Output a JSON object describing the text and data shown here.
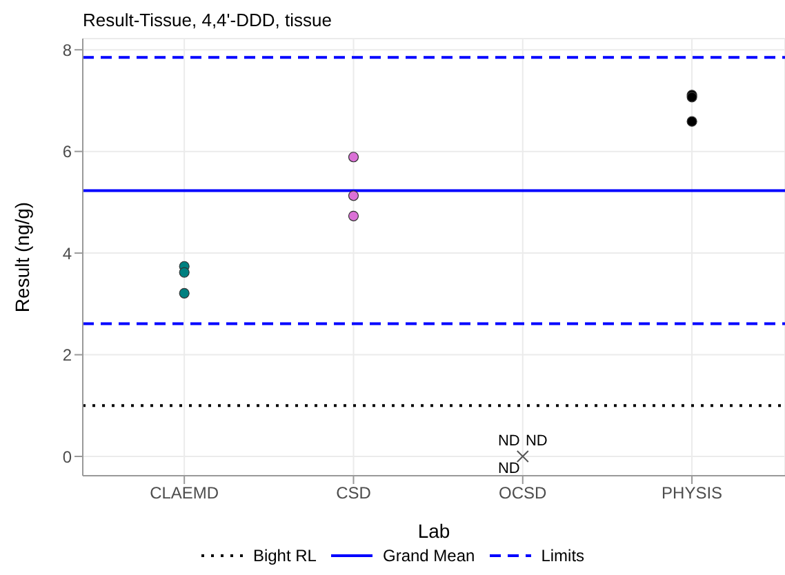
{
  "chart_data": {
    "type": "scatter",
    "title": "Result-Tissue, 4,4'-DDD, tissue",
    "xlabel": "Lab",
    "ylabel": "Result (ng/g)",
    "categories": [
      "CLAEMD",
      "CSD",
      "OCSD",
      "PHYSIS"
    ],
    "series": [
      {
        "color": "#008080",
        "x": [
          "CLAEMD",
          "CLAEMD",
          "CLAEMD"
        ],
        "values": [
          3.74,
          3.62,
          3.21
        ]
      },
      {
        "color": "#da70d6",
        "x": [
          "CSD",
          "CSD",
          "CSD"
        ],
        "values": [
          5.89,
          5.13,
          4.73
        ]
      },
      {
        "color": "#555555",
        "marker": "cross",
        "x": [
          "OCSD"
        ],
        "values": [
          0
        ]
      },
      {
        "color": "#000000",
        "x": [
          "PHYSIS",
          "PHYSIS",
          "PHYSIS"
        ],
        "values": [
          7.11,
          7.07,
          6.59
        ]
      }
    ],
    "marker": "circle",
    "ylim": [
      -0.38,
      8.22
    ],
    "yticks": [
      0,
      2,
      4,
      6,
      8
    ],
    "grid": true,
    "legend": "bottom",
    "ref_lines": [
      {
        "axis": "y",
        "value": 1.0,
        "label": "Bight RL",
        "color": "#000000",
        "line_style": "dotted"
      },
      {
        "axis": "y",
        "value": 5.23,
        "label": "Grand Mean",
        "color": "#0000ff",
        "line_style": "solid"
      },
      {
        "axis": "y",
        "value": 7.85,
        "label": "Limits",
        "color": "#0000ff",
        "line_style": "dashed"
      },
      {
        "axis": "y",
        "value": 2.61,
        "color": "#0000ff",
        "line_style": "dashed"
      }
    ],
    "annotations": [
      {
        "text": "ND",
        "x": "OCSD",
        "y": 0
      },
      {
        "text": "ND",
        "x": "OCSD",
        "y": 0
      },
      {
        "text": "ND",
        "x": "OCSD",
        "y": 0
      }
    ]
  }
}
